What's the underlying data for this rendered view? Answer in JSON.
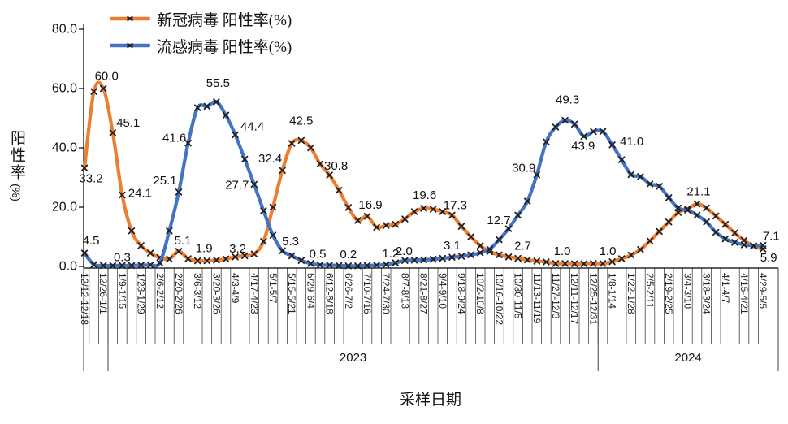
{
  "figure": {
    "background": "#ffffff"
  },
  "legend": {
    "items": [
      {
        "label": "新冠病毒 阳性率(%)",
        "color": "#ED7D31"
      },
      {
        "label": "流感病毒 阳性率(%)",
        "color": "#4472C4"
      }
    ]
  },
  "y_axis": {
    "title_chars": "阳性率",
    "title_unit": "(%)",
    "ticks": [
      "80.0",
      "60.0",
      "40.0",
      "20.0",
      "0.0"
    ]
  },
  "x_axis": {
    "title": "采样日期"
  },
  "chart_data": {
    "type": "line",
    "smooth": true,
    "title": "",
    "xlabel": "采样日期",
    "ylabel": "阳性率(%)",
    "ylim": [
      0,
      80
    ],
    "y_tick_step": 20,
    "grid": false,
    "legend_position": "top-left",
    "marker": {
      "shape": "x",
      "color": "#1f1f1f"
    },
    "categories": [
      "12/12-12/18",
      "12/26-1/1",
      "1/9-1/15",
      "1/23-1/29",
      "2/6-2/12",
      "2/20-2/26",
      "3/6-3/12",
      "3/20-3/26",
      "4/3-4/9",
      "4/17-4/23",
      "5/1-5/7",
      "5/15-5/21",
      "5/29-6/4",
      "6/12-6/18",
      "6/26-7/2",
      "7/10-7/16",
      "7/24-7/30",
      "8/7-8/13",
      "8/21-8/27",
      "9/4-9/10",
      "9/18-9/24",
      "10/2-10/8",
      "10/16-10/22",
      "10/30-11/5",
      "11/13-11/19",
      "11/27-12/3",
      "12/11-12/17",
      "12/25-12/31",
      "1/8-1/14",
      "1/22-1/28",
      "2/5-2/11",
      "2/19-2/25",
      "3/4-3/10",
      "3/18-3/24",
      "4/1-4/7",
      "4/15-4/21",
      "4/29-5/5"
    ],
    "label_interval_weeks": 2,
    "year_groups": [
      {
        "label": "",
        "weeks": 3
      },
      {
        "label": "2023",
        "weeks": 52
      },
      {
        "label": "2024",
        "weeks": 18
      }
    ],
    "series": [
      {
        "name": "新冠病毒 阳性率(%)",
        "color": "#ED7D31",
        "values": [
          33.2,
          59.0,
          60.0,
          45.1,
          24.1,
          12.0,
          7.0,
          4.5,
          3.0,
          2.5,
          5.1,
          2.6,
          1.9,
          1.9,
          2.1,
          2.5,
          3.2,
          3.6,
          4.2,
          8.4,
          20.0,
          32.4,
          41.5,
          42.5,
          40.0,
          34.6,
          30.8,
          25.7,
          19.9,
          15.5,
          16.9,
          13.2,
          13.8,
          14.2,
          16.0,
          18.5,
          19.6,
          19.3,
          18.5,
          17.3,
          13.5,
          10.0,
          7.0,
          5.0,
          3.9,
          3.2,
          2.7,
          2.2,
          1.8,
          1.5,
          1.0,
          1.0,
          0.9,
          0.9,
          1.0,
          1.0,
          1.6,
          2.6,
          3.8,
          5.7,
          8.6,
          11.8,
          15.0,
          18.2,
          19.4,
          21.1,
          19.7,
          17.0,
          14.2,
          11.3,
          8.8,
          6.8,
          5.9
        ],
        "point_labels": [
          {
            "i": 0,
            "t": "33.2",
            "dx": 8,
            "dy": 13
          },
          {
            "i": 2,
            "t": "60.0",
            "dx": 4,
            "dy": -15
          },
          {
            "i": 3,
            "t": "45.1",
            "dx": 19,
            "dy": -12
          },
          {
            "i": 4,
            "t": "24.1",
            "dx": 22,
            "dy": -2
          },
          {
            "i": 10,
            "t": "5.1",
            "dx": 5,
            "dy": -13
          },
          {
            "i": 12,
            "t": "1.9",
            "dx": 8,
            "dy": -15
          },
          {
            "i": 16,
            "t": "3.2",
            "dx": 3,
            "dy": -10
          },
          {
            "i": 21,
            "t": "32.4",
            "dx": -15,
            "dy": -14
          },
          {
            "i": 23,
            "t": "42.5",
            "dx": 0,
            "dy": -24
          },
          {
            "i": 26,
            "t": "30.8",
            "dx": 8,
            "dy": -11
          },
          {
            "i": 30,
            "t": "16.9",
            "dx": 4,
            "dy": -14
          },
          {
            "i": 36,
            "t": "19.6",
            "dx": 1,
            "dy": -16
          },
          {
            "i": 39,
            "t": "17.3",
            "dx": 4,
            "dy": -12
          },
          {
            "i": 46,
            "t": "2.7",
            "dx": 6,
            "dy": -15
          },
          {
            "i": 50,
            "t": "1.0",
            "dx": 8,
            "dy": -15
          },
          {
            "i": 55,
            "t": "1.0",
            "dx": 6,
            "dy": -15
          },
          {
            "i": 65,
            "t": "21.1",
            "dx": 2,
            "dy": -15
          },
          {
            "i": 72,
            "t": "5.9",
            "dx": 7,
            "dy": 11
          }
        ]
      },
      {
        "name": "流感病毒 阳性率(%)",
        "color": "#4472C4",
        "values": [
          4.5,
          0.6,
          0.3,
          0.3,
          0.3,
          0.3,
          0.4,
          0.5,
          1.2,
          12.0,
          25.1,
          41.6,
          53.5,
          54.0,
          55.5,
          51.0,
          44.4,
          36.2,
          27.7,
          18.8,
          10.5,
          5.3,
          3.6,
          2.0,
          1.0,
          0.5,
          0.4,
          0.3,
          0.2,
          0.2,
          0.3,
          0.4,
          0.6,
          1.2,
          2.0,
          2.1,
          2.2,
          2.4,
          2.7,
          3.1,
          3.4,
          3.9,
          4.6,
          5.8,
          9.0,
          12.7,
          17.3,
          22.0,
          30.9,
          42.0,
          47.0,
          49.3,
          48.0,
          43.9,
          45.5,
          45.5,
          41.0,
          36.0,
          31.0,
          30.3,
          27.8,
          27.0,
          23.2,
          19.7,
          19.0,
          17.3,
          15.0,
          11.5,
          9.3,
          8.1,
          7.3,
          7.0,
          7.1
        ],
        "point_labels": [
          {
            "i": 0,
            "t": "4.5",
            "dx": 8,
            "dy": -15
          },
          {
            "i": 4,
            "t": "0.3",
            "dx": 0,
            "dy": -10
          },
          {
            "i": 10,
            "t": "25.1",
            "dx": -17,
            "dy": -14
          },
          {
            "i": 11,
            "t": "41.6",
            "dx": -17,
            "dy": -6
          },
          {
            "i": 14,
            "t": "55.5",
            "dx": 2,
            "dy": -23
          },
          {
            "i": 16,
            "t": "44.4",
            "dx": 21,
            "dy": -10
          },
          {
            "i": 18,
            "t": "27.7",
            "dx": -21,
            "dy": 1
          },
          {
            "i": 21,
            "t": "5.3",
            "dx": 10,
            "dy": -11
          },
          {
            "i": 25,
            "t": "0.5",
            "dx": -3,
            "dy": -13
          },
          {
            "i": 28,
            "t": "0.2",
            "dx": 0,
            "dy": -14
          },
          {
            "i": 33,
            "t": "1.2",
            "dx": -6,
            "dy": -11
          },
          {
            "i": 34,
            "t": "2.0",
            "dx": -1,
            "dy": -11
          },
          {
            "i": 39,
            "t": "3.1",
            "dx": 0,
            "dy": -14
          },
          {
            "i": 45,
            "t": "12.7",
            "dx": -12,
            "dy": -10
          },
          {
            "i": 48,
            "t": "30.9",
            "dx": -16,
            "dy": -8
          },
          {
            "i": 51,
            "t": "49.3",
            "dx": 3,
            "dy": -25
          },
          {
            "i": 53,
            "t": "43.9",
            "dx": -1,
            "dy": 12
          },
          {
            "i": 56,
            "t": "41.0",
            "dx": 24,
            "dy": -4
          },
          {
            "i": 72,
            "t": "7.1",
            "dx": 10,
            "dy": -11
          }
        ]
      }
    ]
  }
}
